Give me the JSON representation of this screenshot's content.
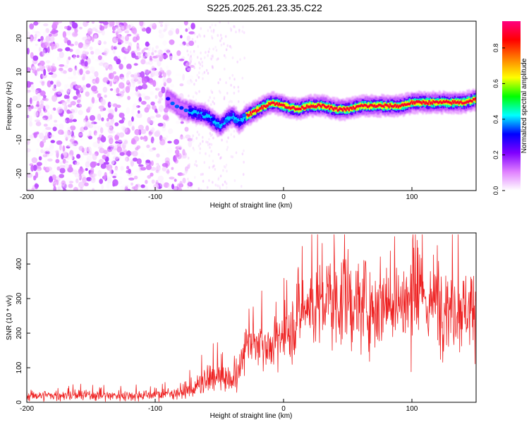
{
  "figure": {
    "title": "S225.2025.261.23.35.C22"
  },
  "chart_data": [
    {
      "type": "heatmap",
      "title": "S225.2025.261.23.35.C22",
      "xlabel": "Height of straight line (km)",
      "ylabel": "Frequency (Hz)",
      "xlim": [
        -200,
        150
      ],
      "ylim": [
        -25,
        25
      ],
      "xticks": [
        -200,
        -100,
        0,
        100
      ],
      "yticks": [
        -20,
        -10,
        0,
        10,
        20
      ],
      "colorbar": {
        "label": "Normalized spectral amplitude",
        "range": [
          0.0,
          0.95
        ],
        "ticks": [
          0.0,
          0.2,
          0.4,
          0.6,
          0.8
        ],
        "stops": [
          "#ffffff",
          "#e080ff",
          "#8000ff",
          "#0000ff",
          "#00ffff",
          "#00ff00",
          "#ffff00",
          "#ff8000",
          "#ff0000",
          "#ff0080"
        ]
      },
      "noise_region_x": [
        -200,
        -75
      ],
      "ridge": {
        "x": [
          -90,
          -80,
          -70,
          -60,
          -50,
          -45,
          -40,
          -35,
          -30,
          -25,
          -20,
          -15,
          -10,
          0,
          10,
          20,
          30,
          40,
          50,
          60,
          70,
          80,
          90,
          100,
          110,
          120,
          130,
          140,
          150
        ],
        "y": [
          2,
          -1,
          -2,
          -3,
          -6,
          -4,
          -3,
          -5,
          -3,
          -2,
          -1,
          0,
          1,
          0,
          -1,
          0,
          0,
          -1,
          -1,
          0,
          0,
          0,
          0,
          1,
          1,
          1,
          1,
          1,
          2
        ]
      }
    },
    {
      "type": "line",
      "xlabel": "Height of straight line (km)",
      "ylabel": "SNR (10 * v/v)",
      "xlim": [
        -200,
        150
      ],
      "ylim": [
        0,
        490
      ],
      "xticks": [
        -200,
        -100,
        0,
        100
      ],
      "yticks": [
        0,
        100,
        200,
        300,
        400
      ],
      "color": "#ee2222",
      "series": [
        {
          "name": "SNR",
          "x": [
            -200,
            -180,
            -160,
            -140,
            -120,
            -100,
            -90,
            -80,
            -70,
            -65,
            -60,
            -55,
            -50,
            -45,
            -40,
            -35,
            -30,
            -28,
            -25,
            -20,
            -15,
            -10,
            -5,
            0,
            5,
            10,
            15,
            20,
            25,
            30,
            35,
            40,
            45,
            50,
            55,
            60,
            65,
            70,
            75,
            80,
            85,
            90,
            95,
            100,
            105,
            110,
            115,
            120,
            125,
            130,
            135,
            140,
            145,
            150
          ],
          "mean": [
            20,
            20,
            20,
            20,
            20,
            22,
            25,
            30,
            40,
            50,
            60,
            70,
            80,
            70,
            60,
            80,
            150,
            200,
            160,
            170,
            180,
            150,
            170,
            200,
            200,
            250,
            270,
            280,
            280,
            280,
            300,
            300,
            290,
            300,
            280,
            290,
            280,
            280,
            290,
            300,
            300,
            290,
            280,
            300,
            290,
            300,
            280,
            300,
            290,
            280,
            280,
            270,
            280,
            270
          ],
          "spread": [
            20,
            20,
            20,
            20,
            20,
            20,
            20,
            25,
            40,
            50,
            60,
            60,
            60,
            50,
            40,
            60,
            80,
            100,
            80,
            80,
            90,
            80,
            90,
            100,
            100,
            150,
            150,
            170,
            170,
            170,
            180,
            170,
            170,
            180,
            170,
            170,
            170,
            170,
            170,
            170,
            170,
            170,
            170,
            170,
            170,
            170,
            170,
            170,
            170,
            170,
            160,
            160,
            160,
            150
          ]
        }
      ]
    }
  ]
}
